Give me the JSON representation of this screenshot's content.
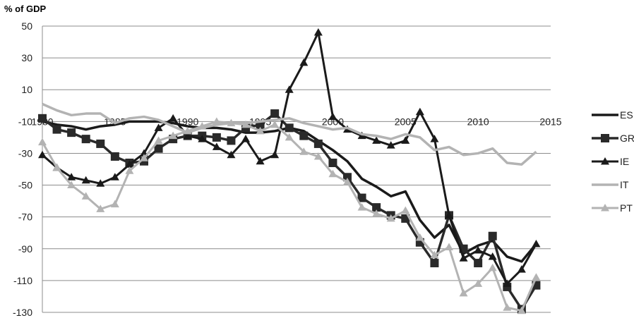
{
  "chart_data": {
    "type": "line",
    "ylabel": "% of GDP",
    "xlim": [
      1980,
      2015
    ],
    "ylim": [
      -130,
      50
    ],
    "x_ticks": [
      1980,
      1985,
      1990,
      1995,
      2000,
      2005,
      2010,
      2015
    ],
    "y_ticks": [
      50,
      30,
      10,
      -10,
      -30,
      -50,
      -70,
      -90,
      -110,
      -130
    ],
    "grid": true,
    "legend_position": "right",
    "x": [
      1980,
      1981,
      1982,
      1983,
      1984,
      1985,
      1986,
      1987,
      1988,
      1989,
      1990,
      1991,
      1992,
      1993,
      1994,
      1995,
      1996,
      1997,
      1998,
      1999,
      2000,
      2001,
      2002,
      2003,
      2004,
      2005,
      2006,
      2007,
      2008,
      2009,
      2010,
      2011,
      2012,
      2013,
      2014
    ],
    "series": [
      {
        "name": "ES",
        "color": "#1a1a1a",
        "marker": "none",
        "width": 3.5,
        "values": [
          -10,
          -12,
          -13,
          -15,
          -13,
          -12,
          -10,
          -10,
          -10,
          -11,
          -13,
          -14,
          -14,
          -15,
          -17,
          -17,
          -16,
          -14,
          -16,
          -22,
          -28,
          -35,
          -46,
          -51,
          -57,
          -54,
          -72,
          -83,
          -75,
          -93,
          -88,
          -85,
          -95,
          -98,
          -87
        ]
      },
      {
        "name": "GR",
        "color": "#2a2a2a",
        "marker": "square",
        "width": 3.5,
        "values": [
          -8,
          -15,
          -17,
          -21,
          -24,
          -32,
          -36,
          -35,
          -27,
          -21,
          -19,
          -19,
          -20,
          -22,
          -14,
          -12,
          -5,
          -14,
          -19,
          -24,
          -36,
          -45,
          -58,
          -64,
          -69,
          -71,
          -86,
          -99,
          -69,
          -90,
          -99,
          -82,
          -114,
          -128,
          -113
        ]
      },
      {
        "name": "IE",
        "color": "#1a1a1a",
        "marker": "triangle",
        "width": 3,
        "values": [
          -31,
          -39,
          -45,
          -47,
          -49,
          -45,
          -37,
          -30,
          -14,
          -8,
          -19,
          -21,
          -26,
          -31,
          -21,
          -35,
          -31,
          10,
          27,
          46,
          -7,
          -15,
          -19,
          -22,
          -25,
          -22,
          -4,
          -21,
          -69,
          -96,
          -91,
          -95,
          -112,
          -103,
          -87
        ]
      },
      {
        "name": "IT",
        "color": "#b3b3b3",
        "marker": "none",
        "width": 3.5,
        "values": [
          1,
          -3,
          -6,
          -5,
          -5,
          -11,
          -8,
          -7,
          -9,
          -13,
          -17,
          -14,
          -12,
          -11,
          -11,
          -10,
          -9,
          -8,
          -11,
          -13,
          -15,
          -14,
          -18,
          -19,
          -21,
          -18,
          -20,
          -28,
          -26,
          -31,
          -30,
          -27,
          -36,
          -37,
          -29
        ]
      },
      {
        "name": "PT",
        "color": "#b3b3b3",
        "marker": "triangle",
        "width": 3,
        "values": [
          -23,
          -39,
          -50,
          -57,
          -65,
          -62,
          -41,
          -33,
          -22,
          -19,
          -16,
          -13,
          -10,
          -11,
          -12,
          -16,
          -12,
          -20,
          -29,
          -32,
          -43,
          -48,
          -64,
          -68,
          -71,
          -66,
          -83,
          -94,
          -89,
          -118,
          -112,
          -102,
          -127,
          -129,
          -108
        ]
      }
    ]
  }
}
